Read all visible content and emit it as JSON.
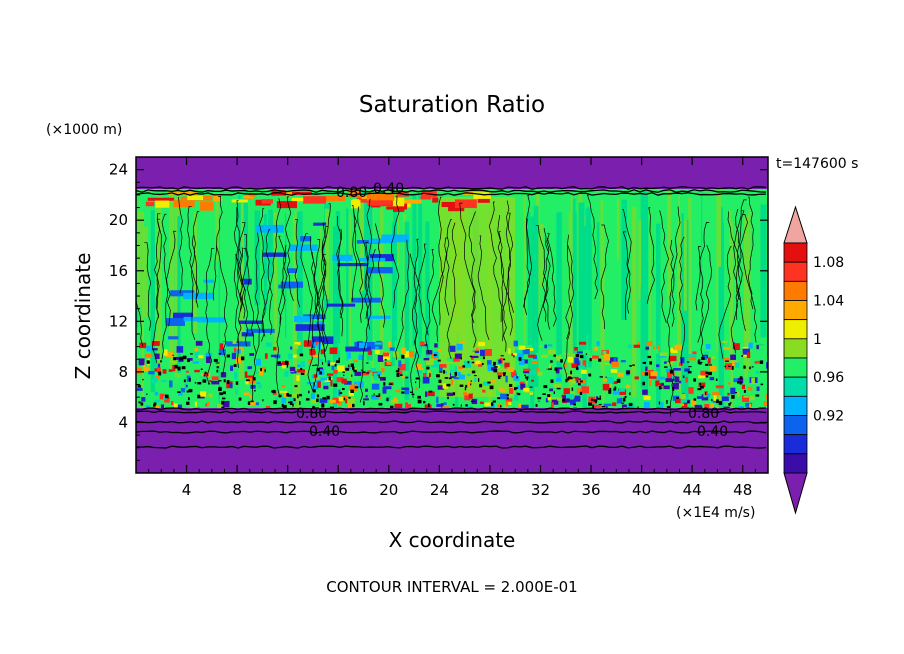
{
  "chart_data": {
    "type": "heatmap",
    "title": "Saturation Ratio",
    "xlabel": "X coordinate",
    "ylabel": "Z coordinate",
    "x_unit": "(×1E4 m/s)",
    "y_unit": "(×1000 m)",
    "time_label": "t=147600 s",
    "footer": "CONTOUR INTERVAL = 2.000E-01",
    "xlim": [
      0,
      50
    ],
    "ylim": [
      0,
      25
    ],
    "x_ticks": [
      "4",
      "8",
      "12",
      "16",
      "20",
      "24",
      "28",
      "32",
      "36",
      "40",
      "44",
      "48"
    ],
    "y_ticks": [
      "4",
      "8",
      "12",
      "16",
      "20",
      "24"
    ],
    "colorbar": {
      "labels": [
        "1.08",
        "1.04",
        "1",
        "0.96",
        "0.92"
      ],
      "colors": [
        "#3a0ca8",
        "#1a2bd8",
        "#0b63ee",
        "#00b3ff",
        "#00ddaa",
        "#22ee66",
        "#88dd22",
        "#eeee00",
        "#ffaa00",
        "#ff7a00",
        "#ff3322",
        "#e31010"
      ],
      "below_color": "#7b1fae",
      "above_color": "#f0a5a0"
    },
    "contour_labels": [
      "0.80",
      "0.40",
      "0.80",
      "0.40",
      "0.80",
      "0.40"
    ],
    "regions": {
      "top_band_color": "#7b1fae",
      "main_color": "#22ee66",
      "lower_band_color": "#7b1fae"
    }
  }
}
